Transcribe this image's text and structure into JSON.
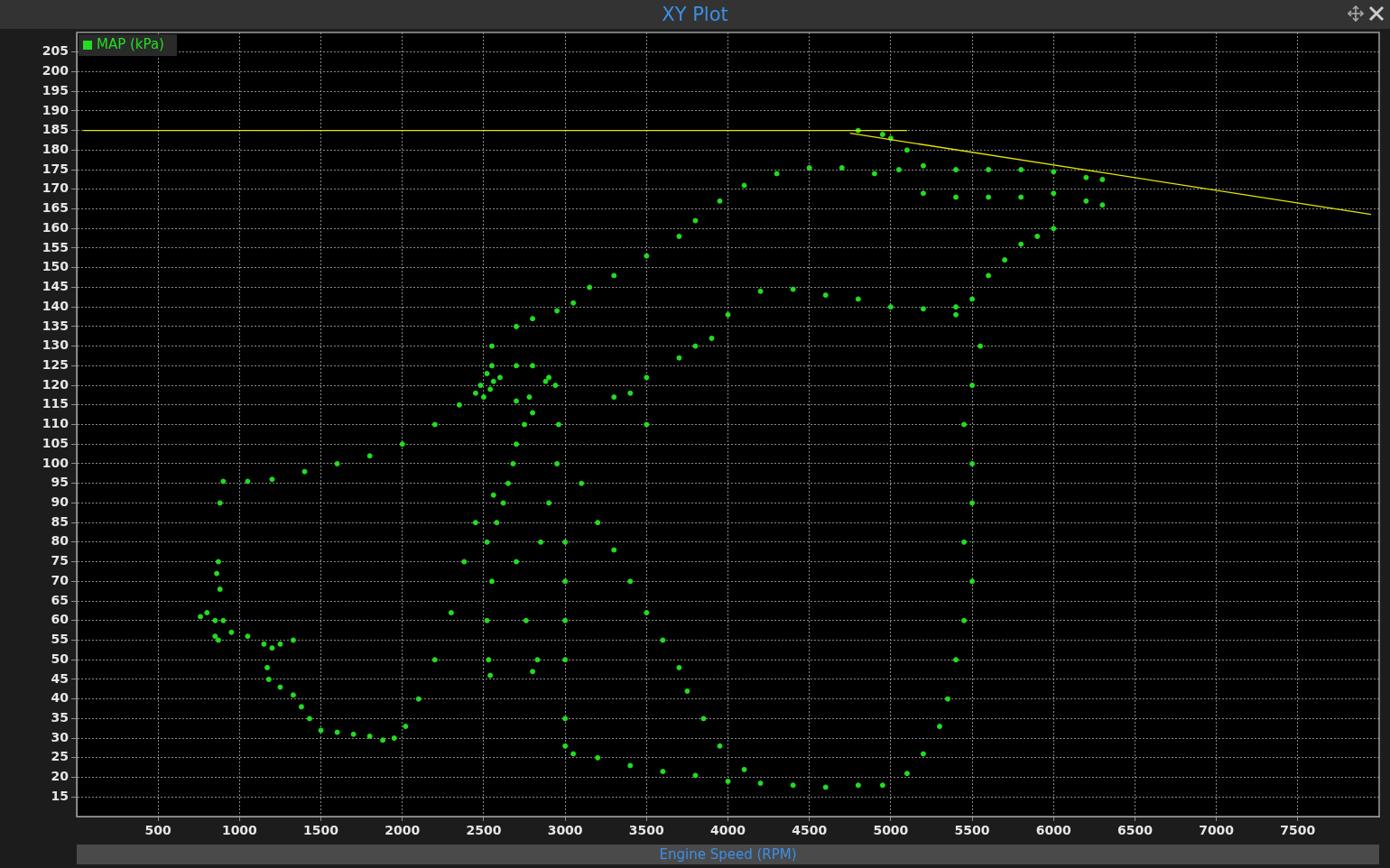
{
  "chart_data": {
    "type": "scatter",
    "title": "XY Plot",
    "xlabel": "Engine Speed (RPM)",
    "xlim": [
      0,
      8000
    ],
    "xticks": [
      500,
      1000,
      1500,
      2000,
      2500,
      3000,
      3500,
      4000,
      4500,
      5000,
      5500,
      6000,
      6500,
      7000,
      7500
    ],
    "ylim": [
      10,
      210
    ],
    "yticks": [
      15,
      20,
      25,
      30,
      35,
      40,
      45,
      50,
      55,
      60,
      65,
      70,
      75,
      80,
      85,
      90,
      95,
      100,
      105,
      110,
      115,
      120,
      125,
      130,
      135,
      140,
      145,
      150,
      155,
      160,
      165,
      170,
      175,
      180,
      185,
      190,
      195,
      200,
      205
    ],
    "grid": true,
    "legend": "top left",
    "series": [
      {
        "name": "MAP (kPa)",
        "type": "scatter",
        "color": "#22dd22",
        "marker": "circle",
        "x": [
          870,
          860,
          880,
          760,
          800,
          850,
          900,
          850,
          870,
          950,
          1050,
          1150,
          1250,
          1330,
          1200,
          1170,
          1180,
          1250,
          1330,
          1380,
          1430,
          1500,
          1600,
          1700,
          1800,
          1880,
          1950,
          2020,
          2100,
          2200,
          2300,
          2380,
          2450,
          880,
          900,
          1050,
          1200,
          1400,
          1600,
          1800,
          2000,
          2200,
          2350,
          2450,
          2480,
          2520,
          2560,
          2600,
          2540,
          2500,
          2550,
          2700,
          2800,
          2900,
          2940,
          2880,
          2700,
          2780,
          2800,
          2750,
          2700,
          2680,
          2650,
          2620,
          2560,
          2580,
          2520,
          2550,
          2520,
          2530,
          2540,
          2800,
          2830,
          2760,
          2700,
          2850,
          2900,
          2950,
          2960,
          2550,
          2700,
          2800,
          2950,
          3050,
          3150,
          3300,
          3500,
          3700,
          3800,
          3950,
          4100,
          4300,
          4500,
          4700,
          4900,
          5050,
          5200,
          5400,
          5600,
          5800,
          6000,
          6200,
          6300,
          5200,
          5400,
          5600,
          5800,
          6000,
          6200,
          6300,
          4800,
          4950,
          5000,
          5100,
          4200,
          4400,
          4600,
          4800,
          5000,
          5200,
          5400,
          5500,
          5600,
          5700,
          5800,
          5900,
          6000,
          3800,
          3900,
          4000,
          3700,
          3500,
          3400,
          3300,
          3500,
          3100,
          3200,
          3300,
          3400,
          3500,
          3600,
          3700,
          3750,
          3850,
          3950,
          4100,
          3000,
          3000,
          3050,
          3200,
          3400,
          3600,
          3800,
          4000,
          4200,
          4400,
          4600,
          4800,
          4950,
          5100,
          5200,
          5300,
          5350,
          5400,
          5450,
          5500,
          5450,
          5500,
          5500,
          5450,
          5500,
          5550,
          5400,
          3000,
          3000,
          3000,
          3000
        ],
        "values": [
          75,
          72,
          68,
          61,
          62,
          60,
          60,
          56,
          55,
          57,
          56,
          54,
          54,
          55,
          53,
          48,
          45,
          43,
          41,
          38,
          35,
          32,
          31.5,
          31,
          30.5,
          29.5,
          30,
          33,
          40,
          50,
          62,
          75,
          85,
          90,
          95.5,
          95.5,
          96,
          98,
          100,
          102,
          105,
          110,
          115,
          118,
          120,
          123,
          121,
          122,
          119,
          117,
          125,
          125,
          125,
          122,
          120,
          121,
          116,
          117,
          113,
          110,
          105,
          100,
          95,
          90,
          92,
          85,
          80,
          70,
          60,
          50,
          46,
          47,
          50,
          60,
          75,
          80,
          90,
          100,
          110,
          130,
          135,
          137,
          139,
          141,
          145,
          148,
          153,
          158,
          162,
          167,
          171,
          174,
          175.5,
          175.5,
          174,
          175,
          176,
          175,
          175,
          175,
          174.5,
          173,
          172.5,
          169,
          168,
          168,
          168,
          169,
          167,
          166,
          185,
          184,
          183,
          180,
          144,
          144.5,
          143,
          142,
          140,
          139.5,
          140,
          142,
          148,
          152,
          156,
          158,
          160,
          130,
          132,
          138,
          127,
          122,
          118,
          117,
          110,
          95,
          85,
          78,
          70,
          62,
          55,
          48,
          42,
          35,
          28,
          22,
          35,
          28,
          26,
          25,
          23,
          21.5,
          20.5,
          19,
          18.5,
          18,
          17.5,
          18,
          18,
          21,
          26,
          33,
          40,
          50,
          60,
          70,
          80,
          90,
          100,
          110,
          120,
          130,
          138,
          50,
          60,
          70,
          80
        ]
      },
      {
        "type": "line",
        "color": "#e6e600",
        "x": [
          40,
          5100
        ],
        "values": [
          185,
          185
        ]
      },
      {
        "type": "line",
        "color": "#e6e600",
        "x": [
          4750,
          7950
        ],
        "values": [
          184.3,
          163.6
        ]
      }
    ]
  }
}
